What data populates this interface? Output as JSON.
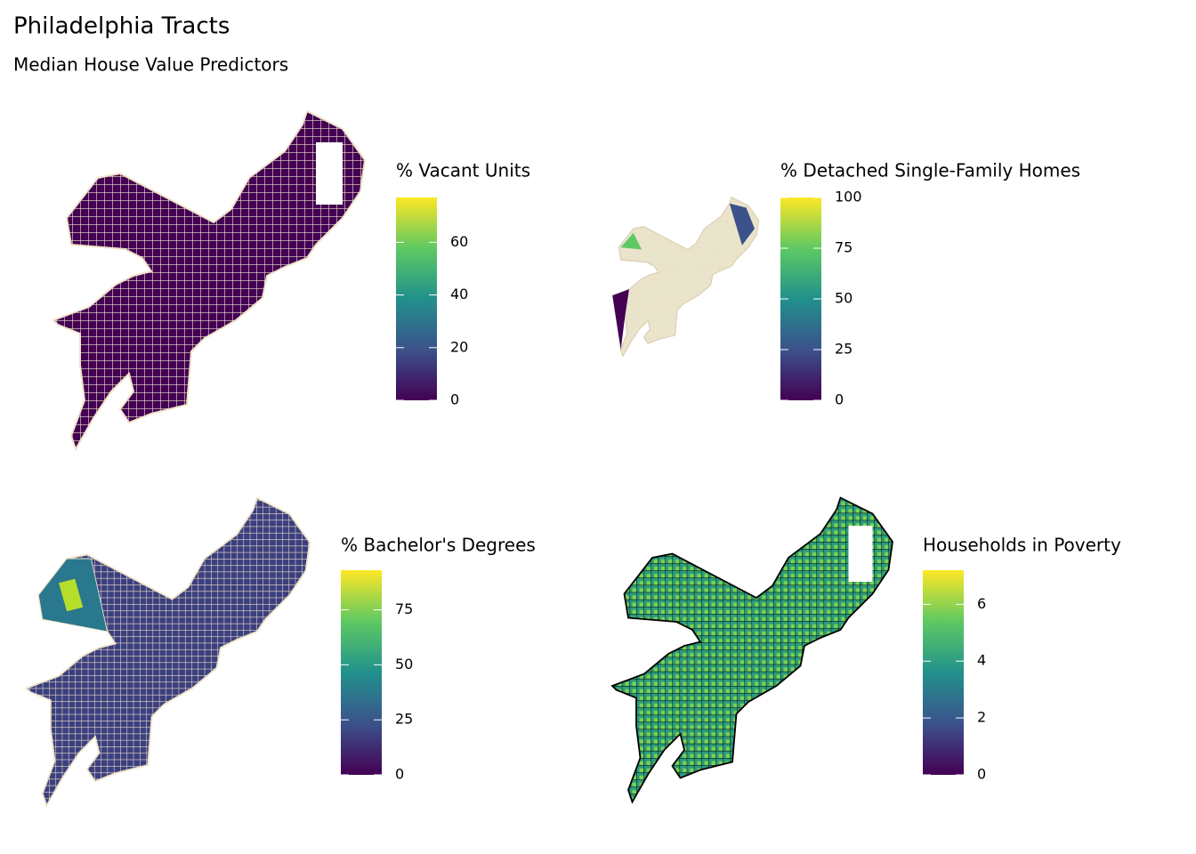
{
  "title": "Philadelphia Tracts",
  "subtitle": "Median House Value Predictors",
  "maps": [
    {
      "legend_title": "% Vacant Units",
      "limits": [
        0,
        77
      ],
      "ticks": [
        0,
        20,
        40,
        60
      ]
    },
    {
      "legend_title": "% Detached Single-Family Homes",
      "limits": [
        0,
        100
      ],
      "ticks": [
        0,
        25,
        50,
        75,
        100
      ]
    },
    {
      "legend_title": "% Bachelor's Degrees",
      "limits": [
        0,
        93
      ],
      "ticks": [
        0,
        25,
        50,
        75
      ]
    },
    {
      "legend_title": "Households in Poverty",
      "limits": [
        0,
        7.2
      ],
      "ticks": [
        0,
        2,
        4,
        6
      ]
    }
  ]
}
